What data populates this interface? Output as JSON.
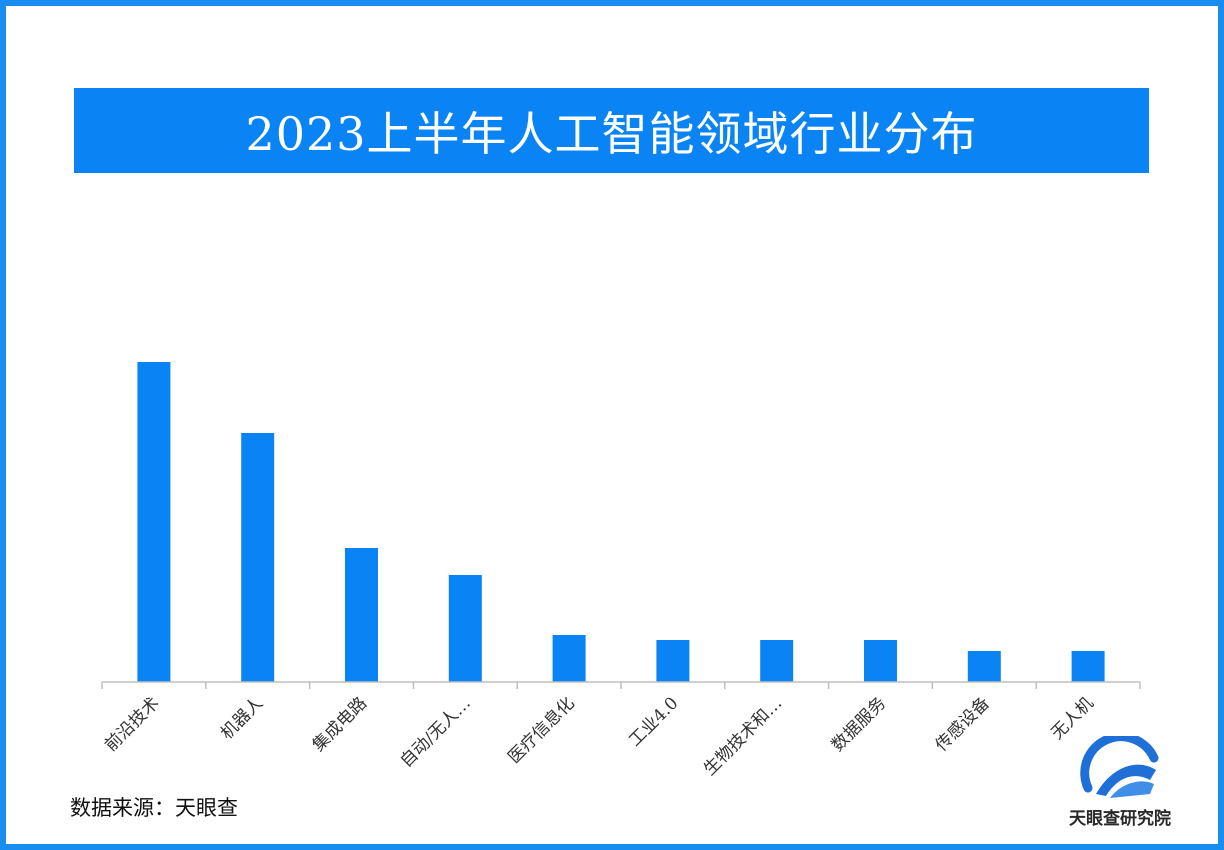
{
  "header": {
    "title": "2023上半年人工智能领域行业分布"
  },
  "chart_data": {
    "type": "bar",
    "title": "2023上半年人工智能领域行业分布",
    "categories": [
      "前沿技术",
      "机器人",
      "集成电路",
      "自动/无人…",
      "医疗信息化",
      "工业4.0",
      "生物技术和…",
      "数据服务",
      "传感设备",
      "无人机"
    ],
    "values": [
      32,
      24.9,
      13.4,
      10.7,
      4.7,
      4.2,
      4.2,
      4.2,
      3.1,
      3.1
    ],
    "ylim": [
      0,
      40
    ],
    "grid": false,
    "legend": "none",
    "bar_color": "#0a84f5",
    "axis_color": "#bfbfbf"
  },
  "footer": {
    "source_label": "数据来源：天眼查",
    "logo_text": "天眼查研究院"
  },
  "colors": {
    "border": "#1a8df0",
    "accent": "#0a84f5",
    "logo_accent": "#1f6fd8"
  }
}
